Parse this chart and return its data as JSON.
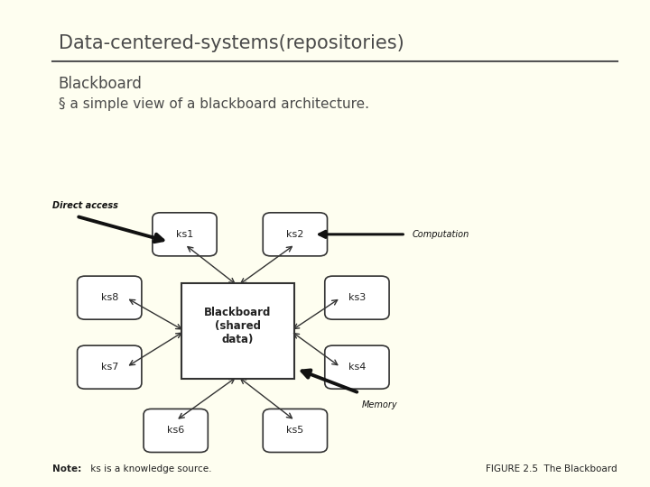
{
  "title": "Data-centered-systems(repositories)",
  "subtitle": "Blackboard",
  "bullet": "§ a simple view of a blackboard architecture.",
  "bg_color": "#FEFEF0",
  "title_color": "#4a4a4a",
  "line_color": "#555555",
  "note_text": "Note: ks is a knowledge source.",
  "figure_text": "FIGURE 2.5  The Blackboard"
}
